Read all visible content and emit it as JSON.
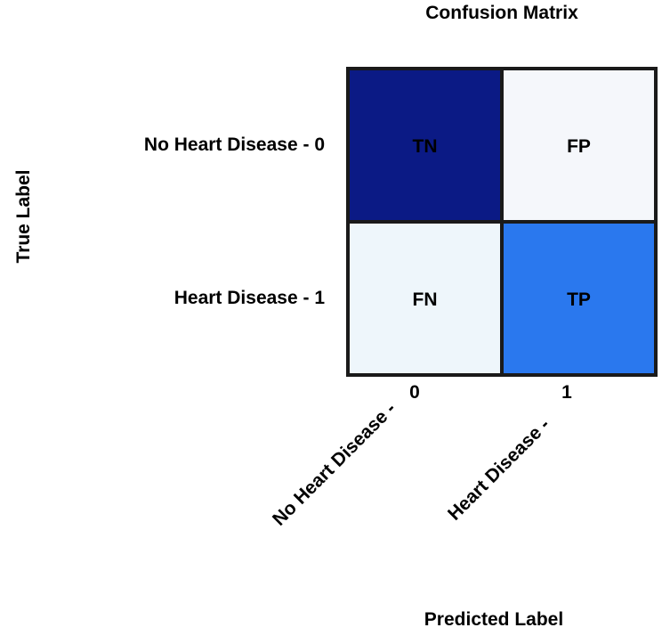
{
  "chart_data": {
    "type": "heatmap",
    "title": "Confusion Matrix",
    "xlabel": "Predicted Label",
    "ylabel": "True Label",
    "row_labels": [
      "No Heart Disease - 0",
      "Heart Disease - 1"
    ],
    "col_tick_numbers": [
      "0",
      "1"
    ],
    "col_tick_labels": [
      "No Heart Disease -",
      "Heart Disease -"
    ],
    "cells": [
      [
        {
          "label": "TN",
          "color": "#0b1a85"
        },
        {
          "label": "FP",
          "color": "#f5f7fb"
        }
      ],
      [
        {
          "label": "FN",
          "color": "#eef6fb"
        },
        {
          "label": "TP",
          "color": "#2a78ee"
        }
      ]
    ],
    "grid_color": "#1a1a1a"
  }
}
